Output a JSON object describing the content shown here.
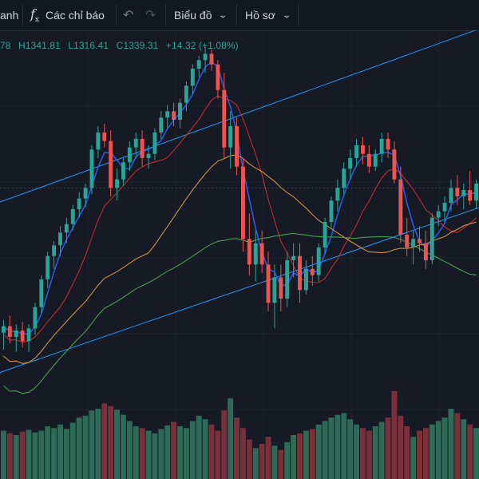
{
  "toolbar": {
    "truncated_label": "anh",
    "indicators_icon": "fx-icon",
    "indicators_label": "Các chỉ báo",
    "undo_icon": "undo-arrow-icon",
    "redo_icon": "redo-arrow-icon",
    "chart_label": "Biểu đồ",
    "profile_label": "Hồ sơ"
  },
  "ohlc": {
    "open": "78",
    "high": "H1341.81",
    "low": "L1316.41",
    "close": "C1339.31",
    "change": "+14.32 (+1.08%)"
  },
  "colors": {
    "background": "#161a25",
    "up": "#26a69a",
    "down": "#ef5350",
    "volume_up": "#2e6b57",
    "volume_down": "#7a2f3a",
    "ma_fast": "#2962ff",
    "ma_red": "#d32f2f",
    "ma_orange": "#e6a23c",
    "ma_green": "#4caf50",
    "channel": "#2196f3"
  },
  "chart_data": {
    "type": "candlestick",
    "note_values": "candles listed as [open, high, low, close]; approximate index level, screen-read",
    "candles": [
      [
        1208,
        1214,
        1200,
        1211
      ],
      [
        1211,
        1216,
        1203,
        1206
      ],
      [
        1206,
        1212,
        1199,
        1209
      ],
      [
        1209,
        1213,
        1201,
        1204
      ],
      [
        1204,
        1212,
        1199,
        1210
      ],
      [
        1210,
        1222,
        1207,
        1220
      ],
      [
        1220,
        1235,
        1217,
        1233
      ],
      [
        1233,
        1246,
        1229,
        1244
      ],
      [
        1244,
        1251,
        1238,
        1249
      ],
      [
        1249,
        1258,
        1244,
        1255
      ],
      [
        1255,
        1262,
        1250,
        1259
      ],
      [
        1259,
        1268,
        1256,
        1266
      ],
      [
        1266,
        1274,
        1262,
        1271
      ],
      [
        1271,
        1278,
        1267,
        1276
      ],
      [
        1276,
        1296,
        1273,
        1294
      ],
      [
        1294,
        1305,
        1290,
        1302
      ],
      [
        1302,
        1306,
        1295,
        1298
      ],
      [
        1298,
        1303,
        1272,
        1276
      ],
      [
        1276,
        1285,
        1270,
        1280
      ],
      [
        1280,
        1290,
        1277,
        1288
      ],
      [
        1288,
        1298,
        1284,
        1295
      ],
      [
        1295,
        1302,
        1290,
        1299
      ],
      [
        1299,
        1303,
        1286,
        1290
      ],
      [
        1290,
        1296,
        1285,
        1292
      ],
      [
        1292,
        1304,
        1289,
        1302
      ],
      [
        1302,
        1312,
        1299,
        1309
      ],
      [
        1309,
        1315,
        1304,
        1312
      ],
      [
        1312,
        1316,
        1305,
        1308
      ],
      [
        1308,
        1318,
        1304,
        1316
      ],
      [
        1316,
        1326,
        1312,
        1324
      ],
      [
        1324,
        1334,
        1320,
        1332
      ],
      [
        1332,
        1338,
        1328,
        1336
      ],
      [
        1336,
        1342,
        1330,
        1339
      ],
      [
        1339,
        1341,
        1331,
        1334
      ],
      [
        1334,
        1336,
        1318,
        1322
      ],
      [
        1322,
        1330,
        1290,
        1295
      ],
      [
        1295,
        1312,
        1285,
        1305
      ],
      [
        1305,
        1309,
        1282,
        1286
      ],
      [
        1286,
        1290,
        1246,
        1252
      ],
      [
        1252,
        1264,
        1235,
        1240
      ],
      [
        1240,
        1256,
        1232,
        1250
      ],
      [
        1250,
        1256,
        1236,
        1240
      ],
      [
        1240,
        1246,
        1218,
        1222
      ],
      [
        1222,
        1240,
        1210,
        1234
      ],
      [
        1234,
        1240,
        1218,
        1224
      ],
      [
        1224,
        1246,
        1220,
        1242
      ],
      [
        1242,
        1250,
        1234,
        1244
      ],
      [
        1244,
        1250,
        1222,
        1228
      ],
      [
        1228,
        1242,
        1226,
        1238
      ],
      [
        1238,
        1244,
        1230,
        1235
      ],
      [
        1235,
        1250,
        1232,
        1248
      ],
      [
        1248,
        1262,
        1245,
        1260
      ],
      [
        1260,
        1272,
        1257,
        1270
      ],
      [
        1270,
        1280,
        1265,
        1276
      ],
      [
        1276,
        1288,
        1273,
        1285
      ],
      [
        1285,
        1294,
        1280,
        1290
      ],
      [
        1290,
        1299,
        1286,
        1296
      ],
      [
        1296,
        1300,
        1287,
        1292
      ],
      [
        1292,
        1296,
        1283,
        1286
      ],
      [
        1286,
        1294,
        1284,
        1292
      ],
      [
        1292,
        1302,
        1288,
        1299
      ],
      [
        1299,
        1302,
        1290,
        1294
      ],
      [
        1294,
        1298,
        1278,
        1280
      ],
      [
        1280,
        1286,
        1250,
        1254
      ],
      [
        1254,
        1262,
        1244,
        1248
      ],
      [
        1248,
        1256,
        1240,
        1252
      ],
      [
        1252,
        1258,
        1246,
        1250
      ],
      [
        1250,
        1256,
        1238,
        1242
      ],
      [
        1242,
        1264,
        1240,
        1262
      ],
      [
        1262,
        1268,
        1258,
        1265
      ],
      [
        1265,
        1272,
        1260,
        1269
      ],
      [
        1269,
        1280,
        1265,
        1276
      ],
      [
        1276,
        1282,
        1268,
        1272
      ],
      [
        1272,
        1278,
        1266,
        1275
      ],
      [
        1275,
        1284,
        1268,
        1270
      ],
      [
        1270,
        1280,
        1266,
        1278
      ]
    ],
    "volume_note": "relative volume 0-1, one per candle",
    "volume": [
      0.55,
      0.52,
      0.5,
      0.54,
      0.56,
      0.53,
      0.55,
      0.6,
      0.58,
      0.62,
      0.57,
      0.64,
      0.7,
      0.72,
      0.78,
      0.8,
      0.86,
      0.83,
      0.79,
      0.73,
      0.66,
      0.6,
      0.58,
      0.55,
      0.52,
      0.57,
      0.61,
      0.65,
      0.6,
      0.58,
      0.66,
      0.72,
      0.68,
      0.62,
      0.55,
      0.78,
      0.92,
      0.7,
      0.58,
      0.45,
      0.35,
      0.4,
      0.48,
      0.38,
      0.33,
      0.42,
      0.5,
      0.52,
      0.55,
      0.57,
      0.62,
      0.66,
      0.7,
      0.73,
      0.75,
      0.68,
      0.62,
      0.58,
      0.55,
      0.6,
      0.65,
      0.7,
      1.0,
      0.72,
      0.6,
      0.48,
      0.55,
      0.58,
      0.62,
      0.66,
      0.7,
      0.8,
      0.75,
      0.68,
      0.62,
      0.58
    ],
    "indicators": [
      "ma_fast",
      "ma_red",
      "ma_orange",
      "ma_green"
    ],
    "trend_channel": "upper and lower parallel lines",
    "ylim": [
      1185,
      1350
    ]
  }
}
